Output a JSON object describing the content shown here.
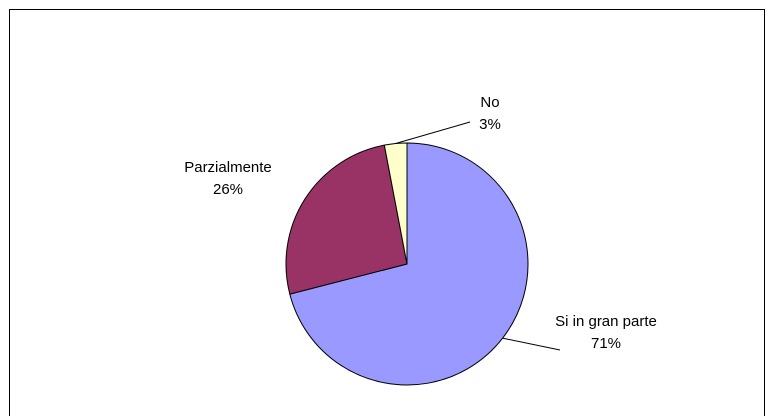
{
  "chart_data": {
    "type": "pie",
    "categories": [
      "Si in gran parte",
      "Parzialmente",
      "No"
    ],
    "values": [
      71,
      26,
      3
    ],
    "value_labels": [
      "71%",
      "26%",
      "3%"
    ],
    "colors": [
      "#9999ff",
      "#993366",
      "#ffffcc"
    ]
  }
}
